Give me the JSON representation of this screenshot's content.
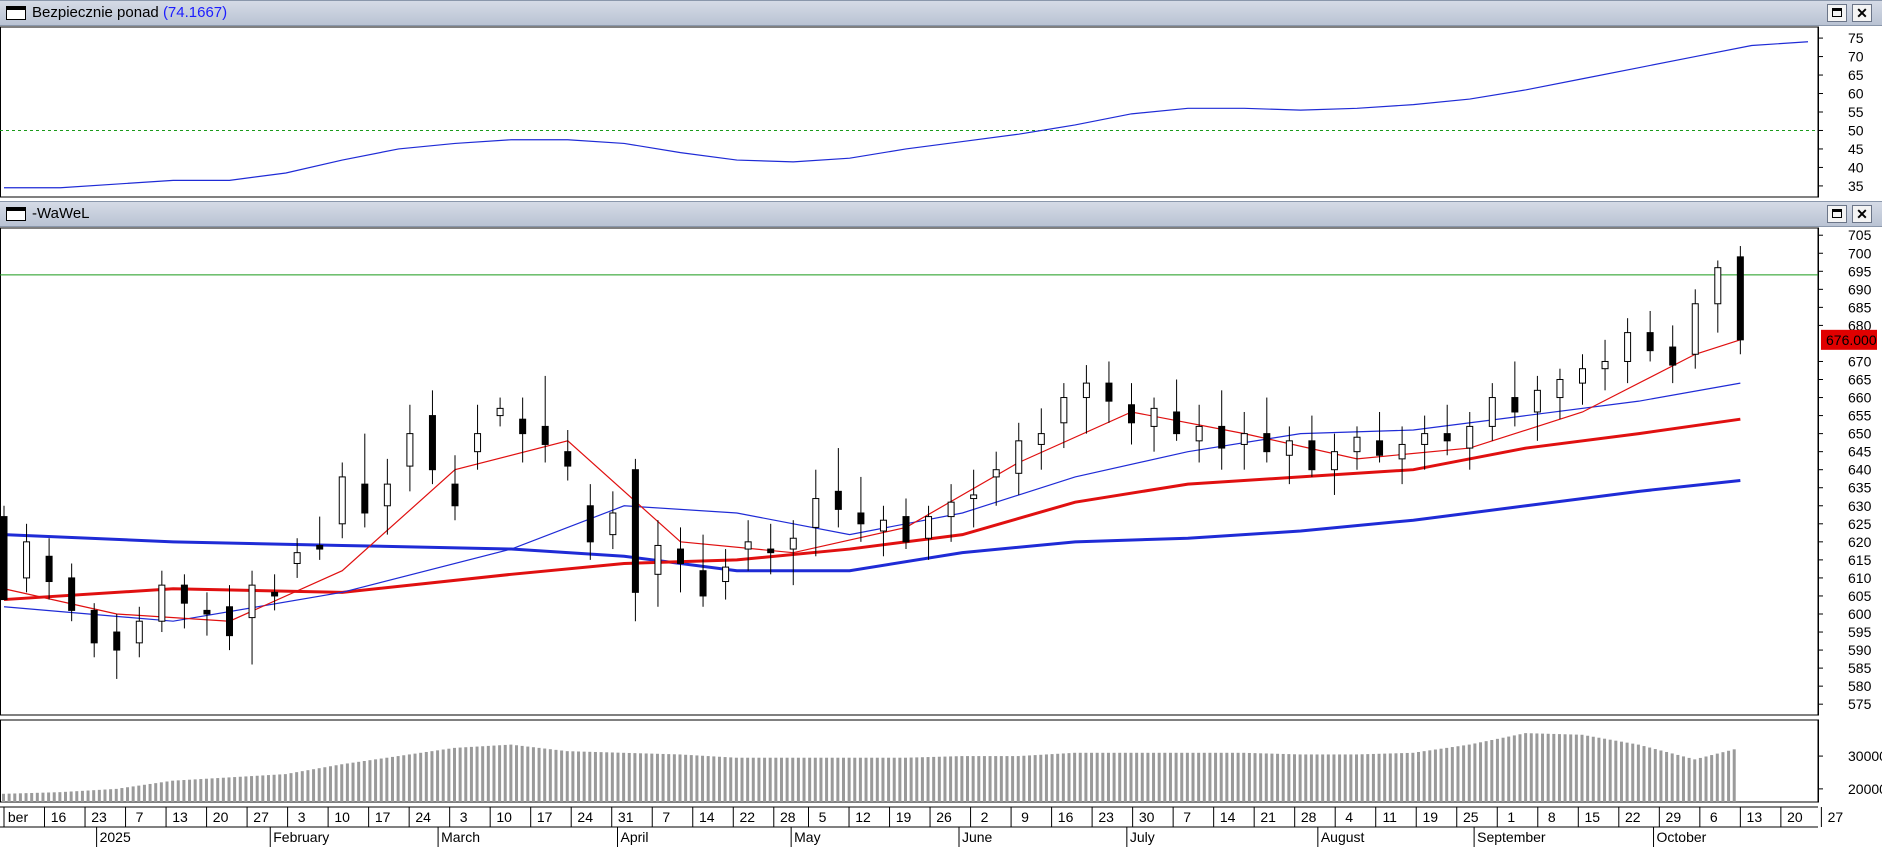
{
  "panel_top": {
    "title": "Bezpiecznie ponad",
    "value": "(74.1667)"
  },
  "panel_main": {
    "title": "-WaWeL",
    "price_badge": "676.000"
  },
  "colors": {
    "bg": "#ffffff",
    "line_blue": "#1f2bd6",
    "line_red": "#e01010",
    "threshold": "#1a9a1a",
    "volume": "#9a9a9a",
    "badge_bg": "#e00000"
  },
  "chart_data": [
    {
      "name": "indicator",
      "type": "line",
      "ylim": [
        32,
        78
      ],
      "yticks": [
        35,
        40,
        45,
        50,
        55,
        60,
        65,
        70,
        75
      ],
      "reference_line": 50,
      "x": [
        0,
        10,
        20,
        30,
        40,
        50,
        60,
        70,
        80,
        90,
        100,
        110,
        120,
        130,
        140,
        150,
        160,
        170,
        180,
        190,
        200,
        210,
        220,
        230,
        240,
        250,
        260,
        270,
        280,
        290,
        300,
        310,
        320
      ],
      "values": [
        34.5,
        34.5,
        35.5,
        36.5,
        36.5,
        38.5,
        42,
        45,
        46.5,
        47.5,
        47.5,
        46.5,
        44,
        42,
        41.5,
        42.5,
        45,
        47,
        49,
        51.5,
        54.5,
        56,
        56,
        55.5,
        56,
        57,
        58.5,
        61,
        64,
        67,
        70,
        73,
        74
      ]
    },
    {
      "name": "price",
      "type": "candlestick",
      "ylim": [
        572,
        707
      ],
      "yticks": [
        575,
        580,
        585,
        590,
        595,
        600,
        605,
        610,
        615,
        620,
        625,
        630,
        635,
        640,
        645,
        650,
        655,
        660,
        665,
        670,
        680,
        685,
        690,
        695,
        700,
        705
      ],
      "reference_line": 694,
      "candles": [
        [
          0,
          627,
          630,
          604,
          604,
          0
        ],
        [
          4,
          610,
          625,
          606,
          620,
          1
        ],
        [
          8,
          616,
          621,
          604,
          609,
          0
        ],
        [
          12,
          610,
          614,
          598,
          601,
          0
        ],
        [
          16,
          601,
          603,
          588,
          592,
          0
        ],
        [
          20,
          595,
          600,
          582,
          590,
          0
        ],
        [
          24,
          592,
          602,
          588,
          598,
          1
        ],
        [
          28,
          598,
          612,
          595,
          608,
          1
        ],
        [
          32,
          608,
          611,
          596,
          603,
          0
        ],
        [
          36,
          601,
          606,
          594,
          600,
          0
        ],
        [
          40,
          602,
          608,
          590,
          594,
          0
        ],
        [
          44,
          599,
          612,
          586,
          608,
          1
        ],
        [
          48,
          606,
          611,
          601,
          605,
          0
        ],
        [
          52,
          614,
          621,
          610,
          617,
          1
        ],
        [
          56,
          619,
          627,
          615,
          618,
          0
        ],
        [
          60,
          625,
          642,
          621,
          638,
          1
        ],
        [
          64,
          636,
          650,
          624,
          628,
          0
        ],
        [
          68,
          630,
          643,
          622,
          636,
          1
        ],
        [
          72,
          641,
          658,
          634,
          650,
          1
        ],
        [
          76,
          655,
          662,
          636,
          640,
          0
        ],
        [
          80,
          636,
          644,
          626,
          630,
          0
        ],
        [
          84,
          650,
          658,
          640,
          645,
          1
        ],
        [
          88,
          655,
          660,
          652,
          657,
          1
        ],
        [
          92,
          654,
          660,
          642,
          650,
          0
        ],
        [
          96,
          652,
          666,
          642,
          647,
          0
        ],
        [
          100,
          645,
          651,
          637,
          641,
          0
        ],
        [
          104,
          630,
          636,
          615,
          620,
          0
        ],
        [
          108,
          628,
          634,
          618,
          622,
          1
        ],
        [
          112,
          640,
          643,
          598,
          606,
          0
        ],
        [
          116,
          611,
          626,
          602,
          619,
          1
        ],
        [
          120,
          618,
          624,
          606,
          614,
          0
        ],
        [
          124,
          612,
          622,
          602,
          605,
          0
        ],
        [
          128,
          609,
          618,
          604,
          613,
          1
        ],
        [
          132,
          618,
          626,
          612,
          620,
          1
        ],
        [
          136,
          617,
          625,
          611,
          618,
          0
        ],
        [
          140,
          618,
          626,
          608,
          621,
          1
        ],
        [
          144,
          624,
          640,
          616,
          632,
          1
        ],
        [
          148,
          634,
          646,
          624,
          629,
          0
        ],
        [
          152,
          628,
          638,
          620,
          625,
          0
        ],
        [
          156,
          623,
          630,
          616,
          626,
          1
        ],
        [
          160,
          627,
          632,
          618,
          620,
          0
        ],
        [
          164,
          621,
          630,
          615,
          627,
          1
        ],
        [
          168,
          627,
          636,
          620,
          631,
          1
        ],
        [
          172,
          633,
          640,
          624,
          632,
          1
        ],
        [
          176,
          638,
          645,
          630,
          640,
          1
        ],
        [
          180,
          639,
          653,
          633,
          648,
          1
        ],
        [
          184,
          647,
          657,
          640,
          650,
          1
        ],
        [
          188,
          653,
          664,
          646,
          660,
          1
        ],
        [
          192,
          660,
          669,
          650,
          664,
          1
        ],
        [
          196,
          664,
          670,
          653,
          659,
          0
        ],
        [
          200,
          658,
          664,
          647,
          653,
          0
        ],
        [
          204,
          652,
          660,
          645,
          657,
          1
        ],
        [
          208,
          656,
          665,
          648,
          650,
          0
        ],
        [
          212,
          648,
          658,
          642,
          652,
          1
        ],
        [
          216,
          652,
          662,
          640,
          646,
          0
        ],
        [
          220,
          647,
          656,
          640,
          650,
          1
        ],
        [
          224,
          650,
          660,
          642,
          645,
          0
        ],
        [
          228,
          644,
          652,
          636,
          648,
          1
        ],
        [
          232,
          648,
          655,
          638,
          640,
          0
        ],
        [
          236,
          640,
          650,
          633,
          645,
          1
        ],
        [
          240,
          645,
          652,
          640,
          649,
          1
        ],
        [
          244,
          648,
          656,
          642,
          644,
          0
        ],
        [
          248,
          643,
          652,
          636,
          647,
          1
        ],
        [
          252,
          647,
          655,
          640,
          650,
          1
        ],
        [
          256,
          650,
          658,
          644,
          648,
          0
        ],
        [
          260,
          646,
          656,
          640,
          652,
          1
        ],
        [
          264,
          652,
          664,
          648,
          660,
          1
        ],
        [
          268,
          660,
          670,
          652,
          656,
          0
        ],
        [
          272,
          656,
          666,
          648,
          662,
          1
        ],
        [
          276,
          660,
          668,
          654,
          665,
          1
        ],
        [
          280,
          664,
          672,
          658,
          668,
          1
        ],
        [
          284,
          668,
          676,
          662,
          670,
          1
        ],
        [
          288,
          670,
          682,
          664,
          678,
          1
        ],
        [
          292,
          678,
          684,
          670,
          673,
          0
        ],
        [
          296,
          674,
          680,
          664,
          669,
          0
        ],
        [
          300,
          672,
          690,
          668,
          686,
          1
        ],
        [
          304,
          686,
          698,
          678,
          696,
          1
        ],
        [
          308,
          699,
          702,
          672,
          676,
          0
        ]
      ],
      "ma_red_thin": [
        [
          0,
          607
        ],
        [
          20,
          600
        ],
        [
          40,
          598
        ],
        [
          60,
          612
        ],
        [
          80,
          640
        ],
        [
          100,
          648
        ],
        [
          120,
          620
        ],
        [
          140,
          617
        ],
        [
          160,
          624
        ],
        [
          180,
          642
        ],
        [
          200,
          656
        ],
        [
          220,
          650
        ],
        [
          240,
          643
        ],
        [
          260,
          646
        ],
        [
          280,
          656
        ],
        [
          300,
          672
        ],
        [
          308,
          676
        ]
      ],
      "ma_blue_thin": [
        [
          0,
          602
        ],
        [
          30,
          598
        ],
        [
          60,
          606
        ],
        [
          90,
          618
        ],
        [
          110,
          630
        ],
        [
          130,
          628
        ],
        [
          150,
          622
        ],
        [
          170,
          628
        ],
        [
          190,
          638
        ],
        [
          210,
          645
        ],
        [
          230,
          650
        ],
        [
          250,
          651
        ],
        [
          270,
          655
        ],
        [
          290,
          659
        ],
        [
          308,
          664
        ]
      ],
      "ma_red_thick": [
        [
          0,
          604
        ],
        [
          30,
          607
        ],
        [
          60,
          606
        ],
        [
          90,
          611
        ],
        [
          110,
          614
        ],
        [
          130,
          615
        ],
        [
          150,
          618
        ],
        [
          170,
          622
        ],
        [
          190,
          631
        ],
        [
          210,
          636
        ],
        [
          230,
          638
        ],
        [
          250,
          640
        ],
        [
          270,
          646
        ],
        [
          290,
          650
        ],
        [
          308,
          654
        ]
      ],
      "ma_blue_thick": [
        [
          0,
          622
        ],
        [
          30,
          620
        ],
        [
          60,
          619
        ],
        [
          90,
          618
        ],
        [
          110,
          616
        ],
        [
          130,
          612
        ],
        [
          150,
          612
        ],
        [
          170,
          617
        ],
        [
          190,
          620
        ],
        [
          210,
          621
        ],
        [
          230,
          623
        ],
        [
          250,
          626
        ],
        [
          270,
          630
        ],
        [
          290,
          634
        ],
        [
          308,
          637
        ]
      ]
    },
    {
      "name": "volume",
      "type": "bar",
      "ylim": [
        16000,
        41000
      ],
      "yticks": [
        20000,
        30000
      ],
      "bars": [
        [
          0,
          18500
        ],
        [
          10,
          19000
        ],
        [
          20,
          20000
        ],
        [
          30,
          22500
        ],
        [
          40,
          23500
        ],
        [
          50,
          24500
        ],
        [
          60,
          27500
        ],
        [
          70,
          30000
        ],
        [
          80,
          32500
        ],
        [
          90,
          33500
        ],
        [
          100,
          31500
        ],
        [
          110,
          31000
        ],
        [
          120,
          30500
        ],
        [
          130,
          29500
        ],
        [
          140,
          29500
        ],
        [
          150,
          29500
        ],
        [
          160,
          29500
        ],
        [
          170,
          30000
        ],
        [
          180,
          30000
        ],
        [
          190,
          31000
        ],
        [
          200,
          31000
        ],
        [
          210,
          31000
        ],
        [
          220,
          31000
        ],
        [
          230,
          30500
        ],
        [
          240,
          30500
        ],
        [
          250,
          31000
        ],
        [
          260,
          33500
        ],
        [
          270,
          37000
        ],
        [
          280,
          36500
        ],
        [
          290,
          33500
        ],
        [
          300,
          29000
        ],
        [
          308,
          32500
        ]
      ]
    }
  ],
  "x_axis": {
    "ticks": [
      {
        "x": 0,
        "label": "ber"
      },
      {
        "x": 7,
        "label": "16"
      },
      {
        "x": 14,
        "label": "23"
      },
      {
        "x": 21,
        "label": "7"
      },
      {
        "x": 28,
        "label": "13"
      },
      {
        "x": 35,
        "label": "20"
      },
      {
        "x": 42,
        "label": "27"
      },
      {
        "x": 49,
        "label": "3"
      },
      {
        "x": 56,
        "label": "10"
      },
      {
        "x": 63,
        "label": "17"
      },
      {
        "x": 70,
        "label": "24"
      },
      {
        "x": 77,
        "label": "3"
      },
      {
        "x": 84,
        "label": "10"
      },
      {
        "x": 91,
        "label": "17"
      },
      {
        "x": 98,
        "label": "24"
      },
      {
        "x": 105,
        "label": "31"
      },
      {
        "x": 112,
        "label": "7"
      },
      {
        "x": 119,
        "label": "14"
      },
      {
        "x": 126,
        "label": "22"
      },
      {
        "x": 133,
        "label": "28"
      },
      {
        "x": 139,
        "label": "5"
      },
      {
        "x": 146,
        "label": "12"
      },
      {
        "x": 153,
        "label": "19"
      },
      {
        "x": 160,
        "label": "26"
      },
      {
        "x": 167,
        "label": "2"
      },
      {
        "x": 174,
        "label": "9"
      },
      {
        "x": 181,
        "label": "16"
      },
      {
        "x": 188,
        "label": "23"
      },
      {
        "x": 195,
        "label": "30"
      },
      {
        "x": 202,
        "label": "7"
      },
      {
        "x": 209,
        "label": "14"
      },
      {
        "x": 216,
        "label": "21"
      },
      {
        "x": 223,
        "label": "28"
      },
      {
        "x": 230,
        "label": "4"
      },
      {
        "x": 237,
        "label": "11"
      },
      {
        "x": 244,
        "label": "19"
      },
      {
        "x": 251,
        "label": "25"
      },
      {
        "x": 258,
        "label": "1"
      },
      {
        "x": 265,
        "label": "8"
      },
      {
        "x": 272,
        "label": "15"
      },
      {
        "x": 279,
        "label": "22"
      },
      {
        "x": 286,
        "label": "29"
      },
      {
        "x": 293,
        "label": "6"
      },
      {
        "x": 300,
        "label": "13"
      },
      {
        "x": 307,
        "label": "20"
      },
      {
        "x": 314,
        "label": "27"
      }
    ],
    "months": [
      {
        "x": 16,
        "label": "2025"
      },
      {
        "x": 46,
        "label": "February"
      },
      {
        "x": 75,
        "label": "March"
      },
      {
        "x": 106,
        "label": "April"
      },
      {
        "x": 136,
        "label": "May"
      },
      {
        "x": 165,
        "label": "June"
      },
      {
        "x": 194,
        "label": "July"
      },
      {
        "x": 227,
        "label": "August"
      },
      {
        "x": 254,
        "label": "September"
      },
      {
        "x": 285,
        "label": "October"
      }
    ]
  }
}
